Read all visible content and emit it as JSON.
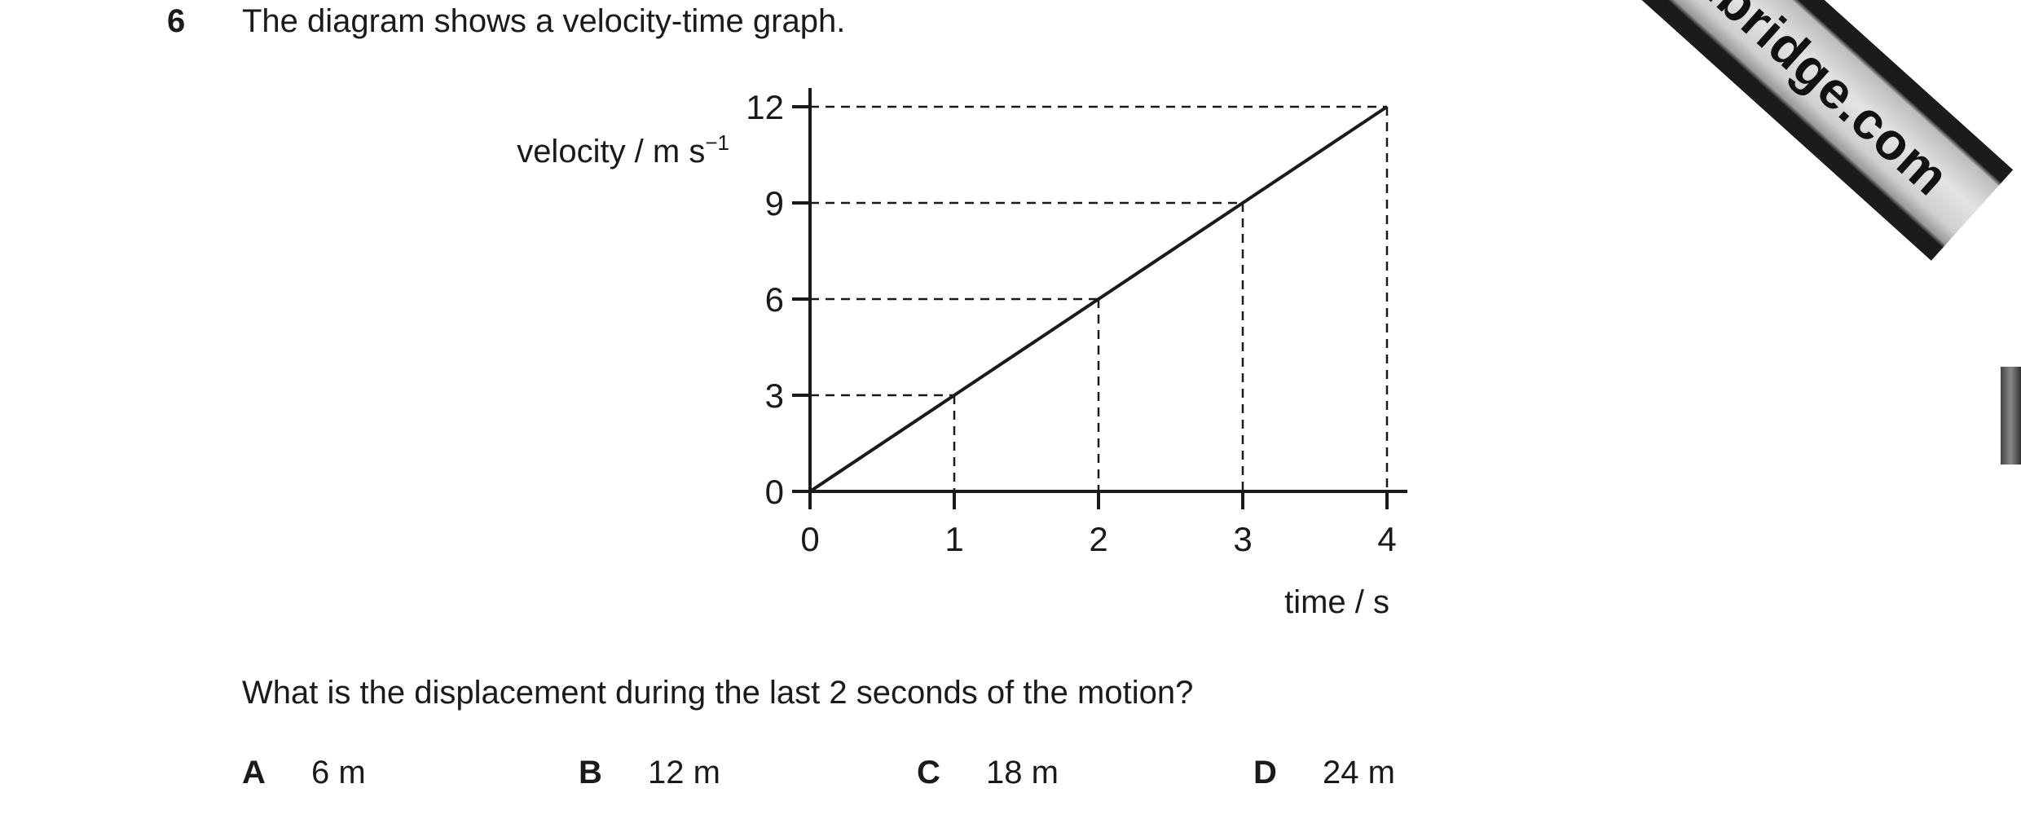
{
  "question": {
    "number": "6",
    "intro": "The diagram shows a velocity-time graph.",
    "prompt": "What is the displacement during the last 2 seconds of the motion?",
    "options": [
      {
        "letter": "A",
        "value": "6 m"
      },
      {
        "letter": "B",
        "value": "12 m"
      },
      {
        "letter": "C",
        "value": "18 m"
      },
      {
        "letter": "D",
        "value": "24 m"
      }
    ]
  },
  "watermark": {
    "text": "Cambridge.com"
  },
  "chart_data": {
    "type": "line",
    "title": "",
    "xlabel": "time / s",
    "ylabel": "velocity / m s⁻¹",
    "xlim": [
      0,
      4
    ],
    "ylim": [
      0,
      12
    ],
    "x_ticks": [
      0,
      1,
      2,
      3,
      4
    ],
    "y_ticks": [
      0,
      3,
      6,
      9,
      12
    ],
    "grid": false,
    "series": [
      {
        "x": [
          0,
          1,
          2,
          3,
          4
        ],
        "y": [
          0,
          3,
          6,
          9,
          12
        ]
      }
    ],
    "guide_lines": "dashed lines from each data point to both axes"
  }
}
